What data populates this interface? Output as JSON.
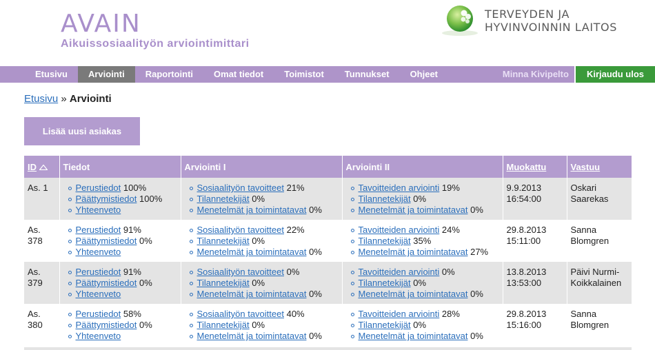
{
  "header": {
    "title": "AVAIN",
    "subtitle": "Aikuissosiaalityön arviointimittari",
    "logo_line1": "TERVEYDEN JA",
    "logo_line2": "HYVINVOINNIN LAITOS"
  },
  "nav": {
    "items": [
      "Etusivu",
      "Arviointi",
      "Raportointi",
      "Omat tiedot",
      "Toimistot",
      "Tunnukset",
      "Ohjeet"
    ],
    "active": "Arviointi",
    "user": "Minna Kivipelto",
    "login": "Kirjaudu ulos"
  },
  "breadcrumb": {
    "home": "Etusivu",
    "separator": "»",
    "current": "Arviointi"
  },
  "add_button": "Lisää uusi asiakas",
  "table": {
    "headers": {
      "id": "ID",
      "tiedot": "Tiedot",
      "arviointi1": "Arviointi I",
      "arviointi2": "Arviointi II",
      "muokattu": "Muokattu",
      "vastuu": "Vastuu"
    },
    "rows": [
      {
        "id_line1": "As. 1",
        "id_line2": "",
        "tiedot": [
          {
            "label": "Perustiedot",
            "value": "100%"
          },
          {
            "label": "Päättymistiedot",
            "value": "100%"
          },
          {
            "label": "Yhteenveto",
            "value": ""
          }
        ],
        "arviointi1": [
          {
            "label": "Sosiaalityön tavoitteet",
            "value": "21%"
          },
          {
            "label": "Tilannetekijät",
            "value": "0%"
          },
          {
            "label": "Menetelmät ja toimintatavat",
            "value": "0%"
          }
        ],
        "arviointi2": [
          {
            "label": "Tavoitteiden arviointi",
            "value": "19%"
          },
          {
            "label": "Tilannetekijät",
            "value": "0%"
          },
          {
            "label": "Menetelmät ja toimintatavat",
            "value": "0%"
          }
        ],
        "muokattu_date": "9.9.2013",
        "muokattu_time": "16:54:00",
        "vastuu_line1": "Oskari",
        "vastuu_line2": "Saarekas"
      },
      {
        "id_line1": "As.",
        "id_line2": "378",
        "tiedot": [
          {
            "label": "Perustiedot",
            "value": "91%"
          },
          {
            "label": "Päättymistiedot",
            "value": "0%"
          },
          {
            "label": "Yhteenveto",
            "value": ""
          }
        ],
        "arviointi1": [
          {
            "label": "Sosiaalityön tavoitteet",
            "value": "22%"
          },
          {
            "label": "Tilannetekijät",
            "value": "0%"
          },
          {
            "label": "Menetelmät ja toimintatavat",
            "value": "0%"
          }
        ],
        "arviointi2": [
          {
            "label": "Tavoitteiden arviointi",
            "value": "24%"
          },
          {
            "label": "Tilannetekijät",
            "value": "35%"
          },
          {
            "label": "Menetelmät ja toimintatavat",
            "value": "27%"
          }
        ],
        "muokattu_date": "29.8.2013",
        "muokattu_time": "15:11:00",
        "vastuu_line1": "Sanna",
        "vastuu_line2": "Blomgren"
      },
      {
        "id_line1": "As.",
        "id_line2": "379",
        "tiedot": [
          {
            "label": "Perustiedot",
            "value": "91%"
          },
          {
            "label": "Päättymistiedot",
            "value": "0%"
          },
          {
            "label": "Yhteenveto",
            "value": ""
          }
        ],
        "arviointi1": [
          {
            "label": "Sosiaalityön tavoitteet",
            "value": "0%"
          },
          {
            "label": "Tilannetekijät",
            "value": "0%"
          },
          {
            "label": "Menetelmät ja toimintatavat",
            "value": "0%"
          }
        ],
        "arviointi2": [
          {
            "label": "Tavoitteiden arviointi",
            "value": "0%"
          },
          {
            "label": "Tilannetekijät",
            "value": "0%"
          },
          {
            "label": "Menetelmät ja toimintatavat",
            "value": "0%"
          }
        ],
        "muokattu_date": "13.8.2013",
        "muokattu_time": "13:53:00",
        "vastuu_line1": "Päivi Nurmi-",
        "vastuu_line2": "Koikkalainen"
      },
      {
        "id_line1": "As.",
        "id_line2": "380",
        "tiedot": [
          {
            "label": "Perustiedot",
            "value": "58%"
          },
          {
            "label": "Päättymistiedot",
            "value": "0%"
          },
          {
            "label": "Yhteenveto",
            "value": ""
          }
        ],
        "arviointi1": [
          {
            "label": "Sosiaalityön tavoitteet",
            "value": "40%"
          },
          {
            "label": "Tilannetekijät",
            "value": "0%"
          },
          {
            "label": "Menetelmät ja toimintatavat",
            "value": "0%"
          }
        ],
        "arviointi2": [
          {
            "label": "Tavoitteiden arviointi",
            "value": "28%"
          },
          {
            "label": "Tilannetekijät",
            "value": "0%"
          },
          {
            "label": "Menetelmät ja toimintatavat",
            "value": "0%"
          }
        ],
        "muokattu_date": "29.8.2013",
        "muokattu_time": "15:16:00",
        "vastuu_line1": "Sanna",
        "vastuu_line2": "Blomgren"
      }
    ]
  },
  "colors": {
    "accent": "#b39ccf",
    "nav": "#ae94c9",
    "nav_active": "#7a7a7a",
    "login": "#3a9a3a",
    "link": "#2a6ebb",
    "row_alt": "#e4e4e4"
  },
  "icons": {
    "sort": "sort-up-triangle-icon",
    "logo": "thl-logo-icon"
  }
}
